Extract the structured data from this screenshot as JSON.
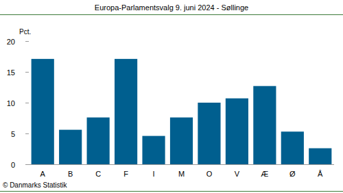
{
  "chart_data": {
    "type": "bar",
    "title": "Europa-Parlamentsvalg 9. juni 2024 - Søllinge",
    "ylabel": "Pct.",
    "categories": [
      "A",
      "B",
      "C",
      "F",
      "I",
      "M",
      "O",
      "V",
      "Æ",
      "Ø",
      "Å"
    ],
    "values": [
      17.1,
      5.6,
      7.6,
      17.1,
      4.6,
      7.6,
      10.0,
      10.7,
      12.7,
      5.3,
      2.6
    ],
    "color": "#005f8f",
    "ylim": [
      0,
      20
    ],
    "yticks": [
      0,
      5,
      10,
      15,
      20
    ],
    "grid": false,
    "source": "© Danmarks Statistik"
  }
}
